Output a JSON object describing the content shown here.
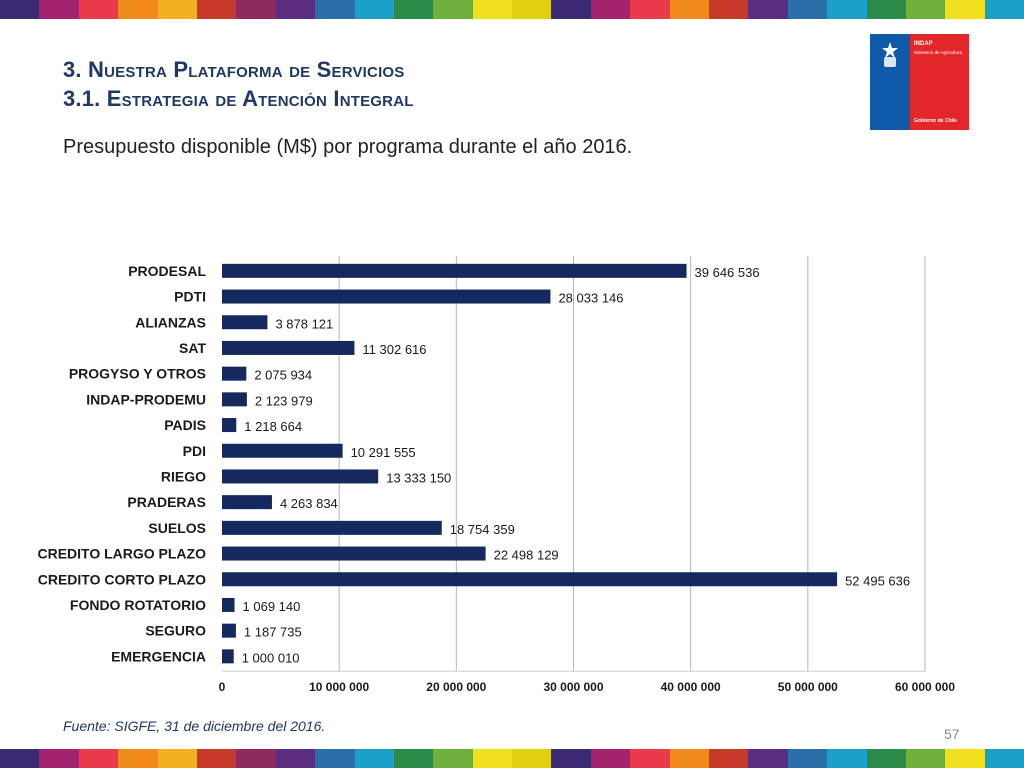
{
  "header": {
    "title_line1": "3. Nuestra Plataforma de Servicios",
    "title_line2": "3.1. Estrategia de Atención Integral",
    "subtitle": "Presupuesto disponible (M$) por programa durante el año 2016."
  },
  "logo": {
    "institution": "INDAP",
    "ministry": "Ministerio de Agricultura",
    "government": "Gobierno de Chile",
    "colors": {
      "blue": "#0f5aa8",
      "red": "#e2262a"
    }
  },
  "stripe_colors": [
    "#3b2a73",
    "#a3236f",
    "#e83a4a",
    "#f08a1c",
    "#f2b020",
    "#c73a2a",
    "#8f2a5f",
    "#5a2d7f",
    "#2a6fa8",
    "#1aa0c8",
    "#2b8a4a",
    "#6fb03a",
    "#f0e020",
    "#e0d010",
    "#3b2a73",
    "#a3236f",
    "#e83a4a",
    "#f08a1c",
    "#c73a2a",
    "#5a2d7f",
    "#2a6fa8",
    "#1aa0c8",
    "#2b8a4a",
    "#6fb03a",
    "#f0e020",
    "#1aa0c8"
  ],
  "chart_data": {
    "type": "bar",
    "orientation": "horizontal",
    "categories": [
      "PRODESAL",
      "PDTI",
      "ALIANZAS",
      "SAT",
      "PROGYSO Y OTROS",
      "INDAP-PRODEMU",
      "PADIS",
      "PDI",
      "RIEGO",
      "PRADERAS",
      "SUELOS",
      "CREDITO LARGO PLAZO",
      "CREDITO CORTO PLAZO",
      "FONDO ROTATORIO",
      "SEGURO",
      "EMERGENCIA"
    ],
    "values": [
      39646536,
      28033146,
      3878121,
      11302616,
      2075934,
      2123979,
      1218664,
      10291555,
      13333150,
      4263834,
      18754359,
      22498129,
      52495636,
      1069140,
      1187735,
      1000010
    ],
    "value_labels": [
      "39 646 536",
      "28 033 146",
      "3 878 121",
      "11 302 616",
      "2 075 934",
      "2 123 979",
      "1 218 664",
      "10 291 555",
      "13 333 150",
      "4 263 834",
      "18 754 359",
      "22 498 129",
      "52 495 636",
      "1 069 140",
      "1 187 735",
      "1 000 010"
    ],
    "xlim": [
      0,
      60000000
    ],
    "x_ticks": [
      0,
      10000000,
      20000000,
      30000000,
      40000000,
      50000000,
      60000000
    ],
    "x_tick_labels": [
      "0",
      "10 000 000",
      "20 000 000",
      "30 000 000",
      "40 000 000",
      "50 000 000",
      "60 000 000"
    ],
    "bar_color": "#16295e",
    "grid": true,
    "legend": "none"
  },
  "footer": {
    "source": "Fuente: SIGFE, 31 de diciembre del 2016.",
    "page_number": "57"
  }
}
